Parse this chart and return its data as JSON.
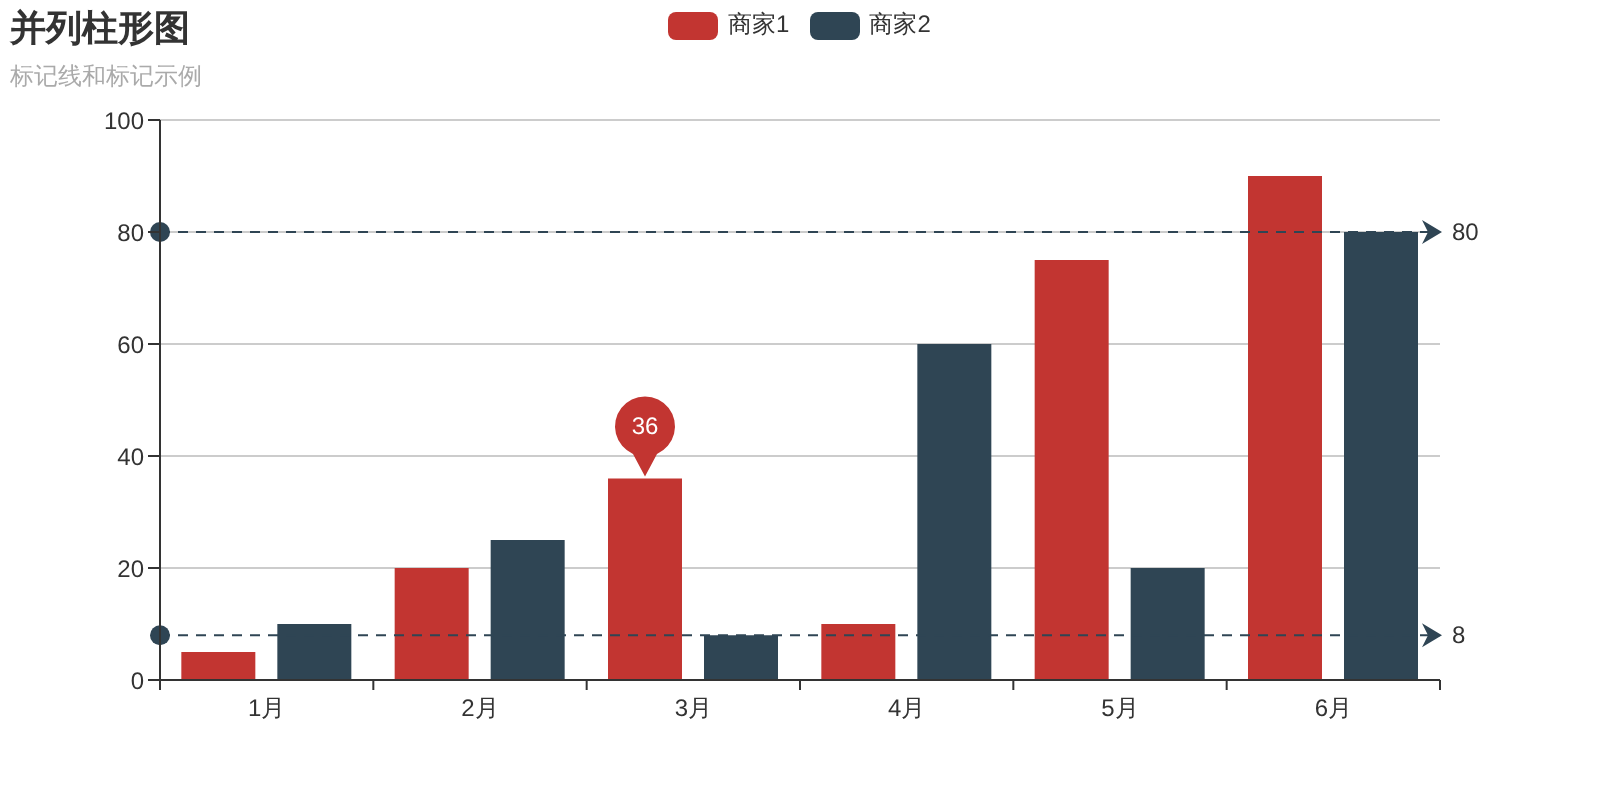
{
  "chart_data": {
    "type": "bar",
    "title": "并列柱形图",
    "subtitle": "标记线和标记示例",
    "categories": [
      "1月",
      "2月",
      "3月",
      "4月",
      "5月",
      "6月"
    ],
    "series": [
      {
        "name": "商家1",
        "color": "#c23531",
        "values": [
          5,
          20,
          36,
          10,
          75,
          90
        ],
        "value_labels": [
          null,
          null,
          "36",
          null,
          null,
          null
        ]
      },
      {
        "name": "商家2",
        "color": "#2f4554",
        "values": [
          10,
          25,
          8,
          60,
          20,
          80
        ]
      }
    ],
    "ylim": [
      0,
      100
    ],
    "yticks": [
      0,
      20,
      40,
      60,
      80,
      100
    ],
    "grid": "y",
    "legend": "top",
    "ref_lines": [
      {
        "axis": "y",
        "value": 80,
        "label": "80",
        "color": "#2f4554",
        "line_style": "dashed"
      },
      {
        "axis": "y",
        "value": 8,
        "label": "8",
        "color": "#2f4554",
        "line_style": "dashed"
      }
    ]
  }
}
